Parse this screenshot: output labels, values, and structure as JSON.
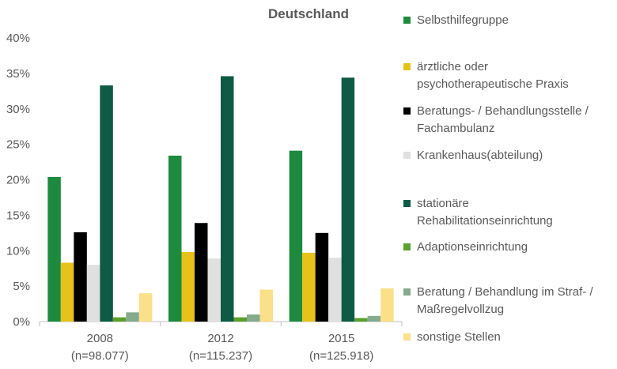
{
  "chart_data": {
    "type": "bar",
    "title": "Deutschland",
    "xlabel": "",
    "ylabel": "",
    "ylim": [
      0,
      0.4
    ],
    "yticks": [
      "0%",
      "5%",
      "10%",
      "15%",
      "20%",
      "25%",
      "30%",
      "35%",
      "40%"
    ],
    "categories": [
      {
        "label_line1": "2008",
        "label_line2": "(n=98.077)"
      },
      {
        "label_line1": "2012",
        "label_line2": "(n=115.237)"
      },
      {
        "label_line1": "2015",
        "label_line2": "(n=125.918)"
      }
    ],
    "grid": false,
    "legend_position": "right",
    "series": [
      {
        "name": "Selbsthilfegruppe",
        "color": "#1e8a3e",
        "values": [
          0.204,
          0.234,
          0.241
        ]
      },
      {
        "name": "ärztliche oder\npsychotherapeutische Praxis",
        "color": "#e6c21a",
        "values": [
          0.083,
          0.098,
          0.097
        ]
      },
      {
        "name": "Beratungs- / Behandlungsstelle /\nFachambulanz",
        "color": "#000000",
        "values": [
          0.126,
          0.139,
          0.125
        ]
      },
      {
        "name": "Krankenhaus(abteilung)",
        "color": "#e0e0e0",
        "values": [
          0.08,
          0.089,
          0.09
        ]
      },
      {
        "name": "stationäre\nRehabilitationseinrichtung",
        "color": "#0f5a44",
        "values": [
          0.333,
          0.346,
          0.344
        ]
      },
      {
        "name": "Adaptionseinrichtung",
        "color": "#5aa02c",
        "values": [
          0.006,
          0.006,
          0.005
        ]
      },
      {
        "name": "Beratung / Behandlung im Straf- /\nMaßregelvollzug",
        "color": "#86aa8c",
        "values": [
          0.013,
          0.01,
          0.008
        ]
      },
      {
        "name": "sonstige Stellen",
        "color": "#fbe08a",
        "values": [
          0.04,
          0.045,
          0.047
        ]
      }
    ]
  }
}
